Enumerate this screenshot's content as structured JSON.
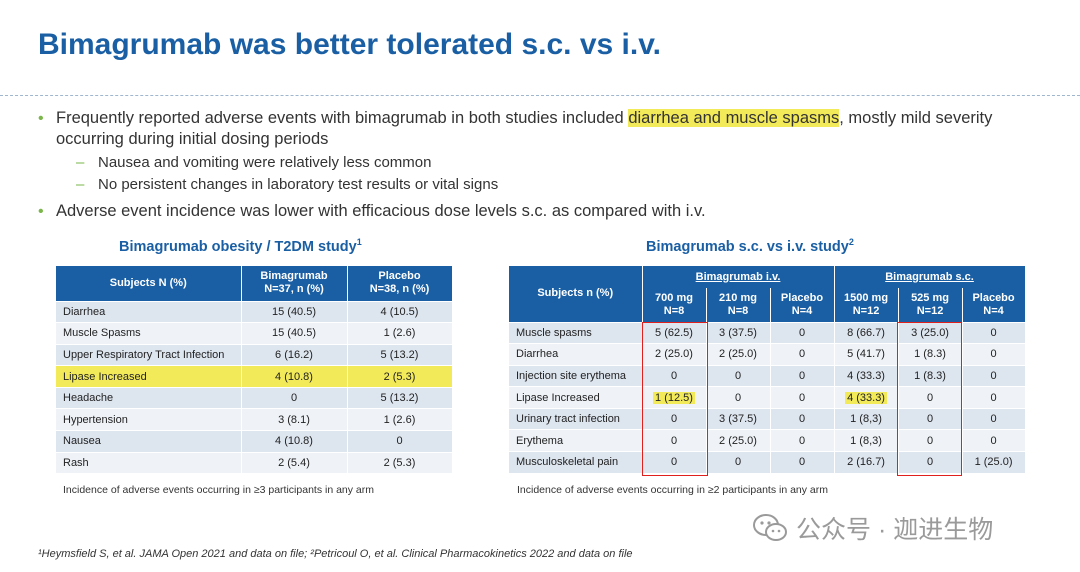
{
  "title": "Bimagrumab was better tolerated s.c. vs i.v.",
  "bullets": {
    "b1_pre": "Frequently reported adverse events with bimagrumab in both studies included ",
    "b1_hl": "diarrhea and muscle spasms",
    "b1_post": ", mostly mild severity occurring during initial dosing periods",
    "sub1": "Nausea and vomiting were relatively less common",
    "sub2": "No persistent changes in laboratory test results or vital signs",
    "b2": "Adverse event incidence was lower with efficacious dose levels s.c. as compared with i.v."
  },
  "left_table": {
    "title": "Bimagrumab obesity / T2DM study",
    "title_sup": "1",
    "headers": [
      "Subjects N (%)",
      "Bimagrumab N=37, n (%)",
      "Placebo N=38, n (%)"
    ],
    "header_lines": [
      [
        "Subjects N (%)"
      ],
      [
        "Bimagrumab",
        "N=37, n (%)"
      ],
      [
        "Placebo",
        "N=38, n (%)"
      ]
    ],
    "rows": [
      [
        "Diarrhea",
        "15 (40.5)",
        "4 (10.5)"
      ],
      [
        "Muscle Spasms",
        "15 (40.5)",
        "1 (2.6)"
      ],
      [
        "Upper Respiratory Tract Infection",
        "6 (16.2)",
        "5 (13.2)"
      ],
      [
        "Lipase Increased",
        "4 (10.8)",
        "2 (5.3)"
      ],
      [
        "Headache",
        "0",
        "5 (13.2)"
      ],
      [
        "Hypertension",
        "3 (8.1)",
        "1 (2.6)"
      ],
      [
        "Nausea",
        "4 (10.8)",
        "0"
      ],
      [
        "Rash",
        "2 (5.4)",
        "2 (5.3)"
      ]
    ],
    "highlight_row": 3,
    "note": "Incidence of adverse events occurring in ≥3 participants in any arm"
  },
  "right_table": {
    "title": "Bimagrumab s.c. vs i.v. study",
    "title_sup": "2",
    "group_iv": "Bimagrumab i.v.",
    "group_sc": "Bimagrumab s.c.",
    "subjects_label": "Subjects n (%)",
    "col_headers": [
      [
        "700 mg",
        "N=8"
      ],
      [
        "210 mg",
        "N=8"
      ],
      [
        "Placebo",
        "N=4"
      ],
      [
        "1500 mg",
        "N=12"
      ],
      [
        "525 mg",
        "N=12"
      ],
      [
        "Placebo",
        "N=4"
      ]
    ],
    "rows": [
      [
        "Muscle spasms",
        "5 (62.5)",
        "3 (37.5)",
        "0",
        "8 (66.7)",
        "3 (25.0)",
        "0"
      ],
      [
        "Diarrhea",
        "2 (25.0)",
        "2 (25.0)",
        "0",
        "5 (41.7)",
        "1 (8.3)",
        "0"
      ],
      [
        "Injection site erythema",
        "0",
        "0",
        "0",
        "4 (33.3)",
        "1 (8.3)",
        "0"
      ],
      [
        "Lipase Increased",
        "1 (12.5)",
        "0",
        "0",
        "4 (33.3)",
        "0",
        "0"
      ],
      [
        "Urinary tract infection",
        "0",
        "3 (37.5)",
        "0",
        "1 (8,3)",
        "0",
        "0"
      ],
      [
        "Erythema",
        "0",
        "2 (25.0)",
        "0",
        "1 (8,3)",
        "0",
        "0"
      ],
      [
        "Musculoskeletal pain",
        "0",
        "0",
        "0",
        "2 (16.7)",
        "0",
        "1 (25.0)"
      ]
    ],
    "highlight_cells": [
      [
        3,
        1
      ],
      [
        3,
        4
      ]
    ],
    "note": "Incidence of adverse events occurring in ≥2 participants in any arm"
  },
  "footnote": "¹Heymsfield S, et al. JAMA Open 2021 and data on file; ²Petricoul O, et al. Clinical Pharmacokinetics 2022 and data on file",
  "watermark": "公众号 · 迦进生物",
  "colors": {
    "accent": "#1a5fa4",
    "bullet": "#7ab648",
    "highlight": "#f3ea5a",
    "box": "#e0201c"
  }
}
